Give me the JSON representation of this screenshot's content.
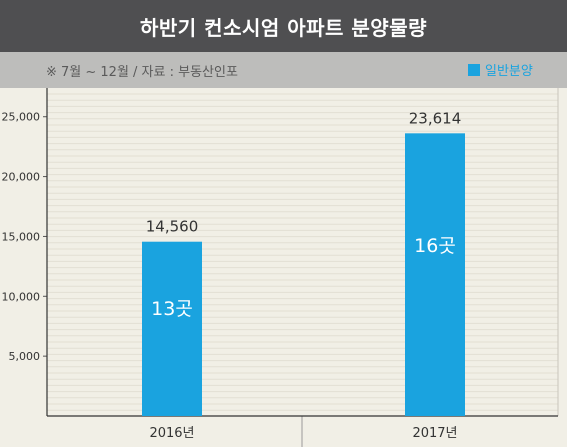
{
  "title": "하반기 컨소시엄 아파트 분양물량",
  "source": "※ 7월 ~ 12월 / 자료 : 부동산인포",
  "legend": {
    "label": "일반분양",
    "color": "#1aa3df"
  },
  "chart_data": {
    "type": "bar",
    "categories": [
      "2016년",
      "2017년"
    ],
    "series": [
      {
        "name": "일반분양",
        "values": [
          14560,
          23614
        ],
        "labels": [
          "14,560",
          "23,614"
        ],
        "inner_labels": [
          "13곳",
          "16곳"
        ]
      }
    ],
    "y_ticks": [
      5000,
      10000,
      15000,
      20000,
      25000
    ],
    "y_tick_labels": [
      "5,000",
      "10,000",
      "15,000",
      "20,000",
      "25,000"
    ],
    "ylim": [
      0,
      27400
    ],
    "grid": true,
    "bar_color": "#1aa3df"
  }
}
